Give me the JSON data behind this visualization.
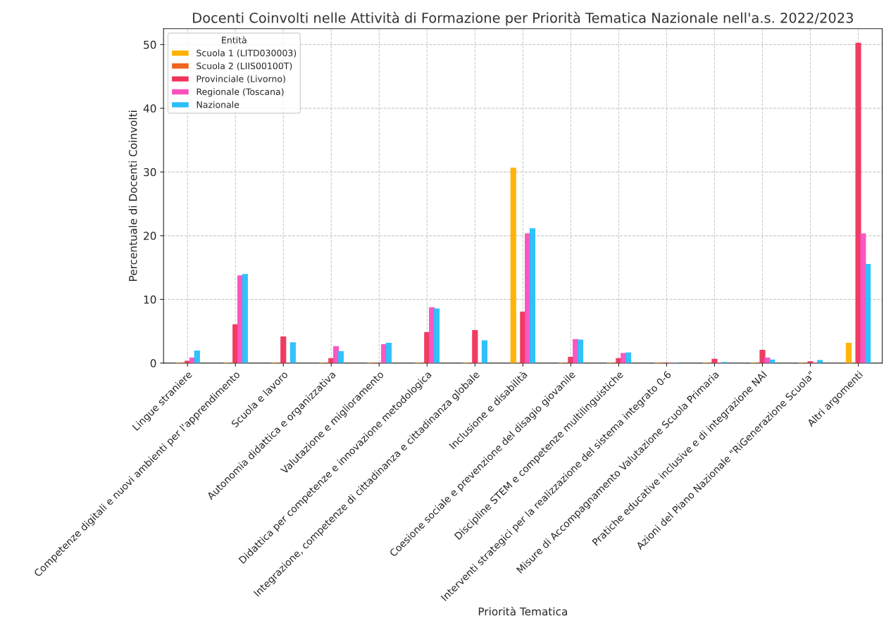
{
  "chart_data": {
    "type": "bar",
    "title": "Docenti Coinvolti nelle Attività di Formazione per Priorità Tematica Nazionale nell'a.s. 2022/2023",
    "xlabel": "Priorità Tematica",
    "ylabel": "Percentuale di Docenti Coinvolti",
    "legend_title": "Entità",
    "categories": [
      "Lingue straniere",
      "Competenze digitali e nuovi ambienti per l'apprendimento",
      "Scuola e lavoro",
      "Autonomia didattica e organizzativa",
      "Valutazione e miglioramento",
      "Didattica per competenze e innovazione metodologica",
      "Integrazione, competenze di cittadinanza e cittadinanza globale",
      "Inclusione e disabilità",
      "Coesione sociale e prevenzione del disagio giovanile",
      "Discipline STEM e competenze multilinguistiche",
      "Interventi strategici per la realizzazione del sistema integrato 0-6",
      "Misure di Accompagnamento Valutazione Scuola Primaria",
      "Pratiche educative inclusive e di integrazione NAI",
      "Azioni del Piano Nazionale \"RiGenerazione Scuola\"",
      "Altri argomenti"
    ],
    "series": [
      {
        "name": "Scuola 1 (LITD030003)",
        "color": "#ffb000",
        "values": [
          0,
          0,
          0,
          0,
          0,
          0,
          0,
          30.6,
          0,
          0,
          0,
          0,
          0,
          0,
          3.1
        ]
      },
      {
        "name": "Scuola 2 (LIIS00100T)",
        "color": "#f0641e",
        "values": [
          0,
          0,
          0,
          0,
          0,
          0,
          0,
          0,
          0,
          0,
          0,
          0,
          0,
          0,
          0
        ]
      },
      {
        "name": "Provinciale (Livorno)",
        "color": "#f0325a",
        "values": [
          0.3,
          6.0,
          4.1,
          0.7,
          0,
          4.8,
          5.1,
          8.0,
          0.9,
          0.7,
          0,
          0.6,
          2.0,
          0.2,
          50.2
        ]
      },
      {
        "name": "Regionale (Toscana)",
        "color": "#fa50be",
        "values": [
          0.8,
          13.7,
          0,
          2.6,
          2.9,
          8.7,
          0,
          20.3,
          3.7,
          1.5,
          0,
          0,
          0.8,
          0,
          20.3
        ]
      },
      {
        "name": "Nazionale",
        "color": "#28befa",
        "values": [
          1.9,
          13.9,
          3.2,
          1.8,
          3.1,
          8.5,
          3.5,
          21.1,
          3.6,
          1.6,
          0,
          0.1,
          0.5,
          0.4,
          15.5
        ]
      }
    ],
    "ylim": [
      0,
      52.5
    ],
    "yticks": [
      0,
      10,
      20,
      30,
      40,
      50
    ],
    "grid": true,
    "legend": "top left"
  }
}
